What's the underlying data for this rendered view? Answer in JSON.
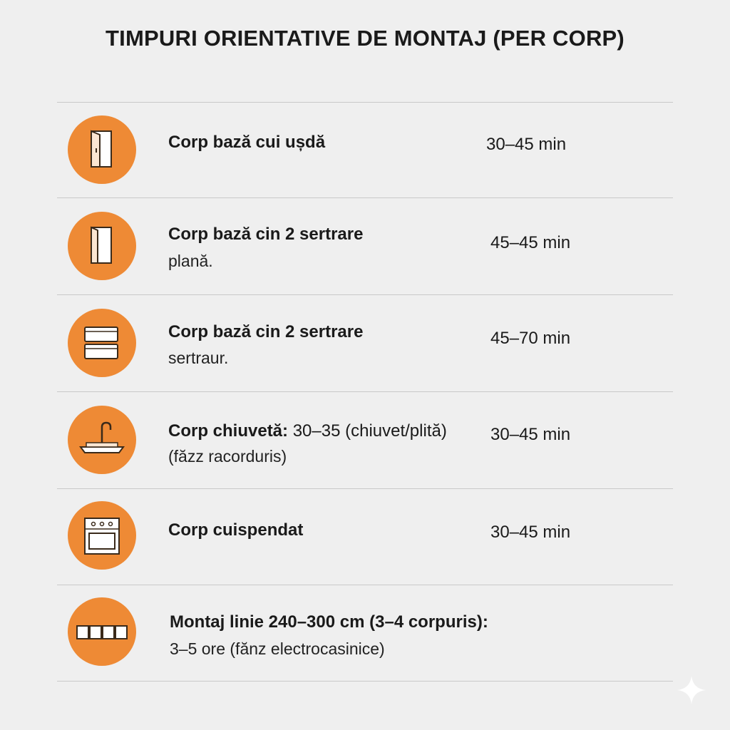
{
  "title": "TIMPURI ORIENTATIVE DE MONTAJ (PER CORP)",
  "rows": [
    {
      "label": "Corp bază cui ușdă",
      "time": "30–45 min"
    },
    {
      "label": "Corp bază cin 2 sertrare",
      "detail": "plană.",
      "time": "45–45 min"
    },
    {
      "label": "Corp bază cin 2 sertrare",
      "detail": "sertraur.",
      "time": "45–70 min"
    },
    {
      "label": "Corp chiuvetă:",
      "note": " 30–35 (chiuvet/plită)",
      "detail": "(făzz racorduris)",
      "time": "30–45 min"
    },
    {
      "label": "Corp cuispendat",
      "time": "30–45 min"
    },
    {
      "label": "Montaj linie 240–300 cm (3–4 corpuris):",
      "detail": "3–5 ore (fănz electrocasinice)"
    }
  ]
}
